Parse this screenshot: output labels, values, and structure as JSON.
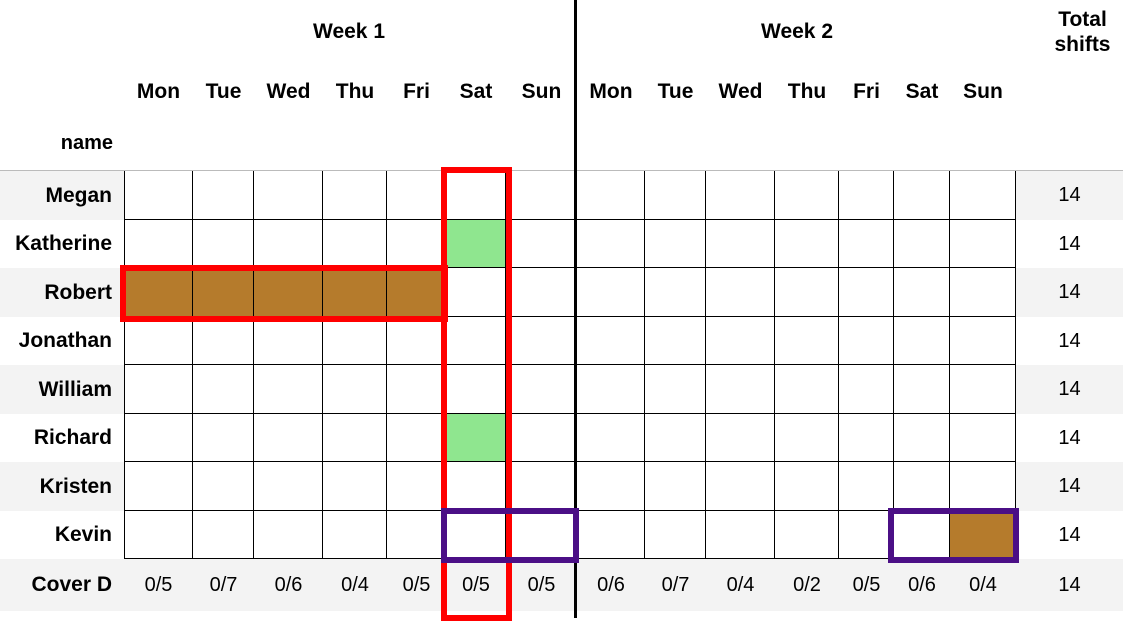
{
  "header": {
    "week1_label": "Week 1",
    "week2_label": "Week 2",
    "total_label_line1": "Total",
    "total_label_line2": "shifts",
    "name_label": "name"
  },
  "days_week1": [
    "Mon",
    "Tue",
    "Wed",
    "Thu",
    "Fri",
    "Sat",
    "Sun"
  ],
  "days_week2": [
    "Mon",
    "Tue",
    "Wed",
    "Thu",
    "Fri",
    "Sat",
    "Sun"
  ],
  "rows": [
    {
      "name": "Megan",
      "total": "14"
    },
    {
      "name": "Katherine",
      "total": "14"
    },
    {
      "name": "Robert",
      "total": "14"
    },
    {
      "name": "Jonathan",
      "total": "14"
    },
    {
      "name": "William",
      "total": "14"
    },
    {
      "name": "Richard",
      "total": "14"
    },
    {
      "name": "Kristen",
      "total": "14"
    },
    {
      "name": "Kevin",
      "total": "14"
    }
  ],
  "cover": {
    "label": "Cover D",
    "week1": [
      "0/5",
      "0/7",
      "0/6",
      "0/4",
      "0/5",
      "0/5",
      "0/5"
    ],
    "week2": [
      "0/6",
      "0/7",
      "0/4",
      "0/2",
      "0/5",
      "0/6",
      "0/4"
    ],
    "total": "14"
  },
  "colors": {
    "shift_brown": "#b57b2c",
    "shift_green": "#8fe68f",
    "row_stripe": "#f3f3f3",
    "highlight_red": "#ff0000",
    "highlight_purple": "#4b0f86"
  }
}
